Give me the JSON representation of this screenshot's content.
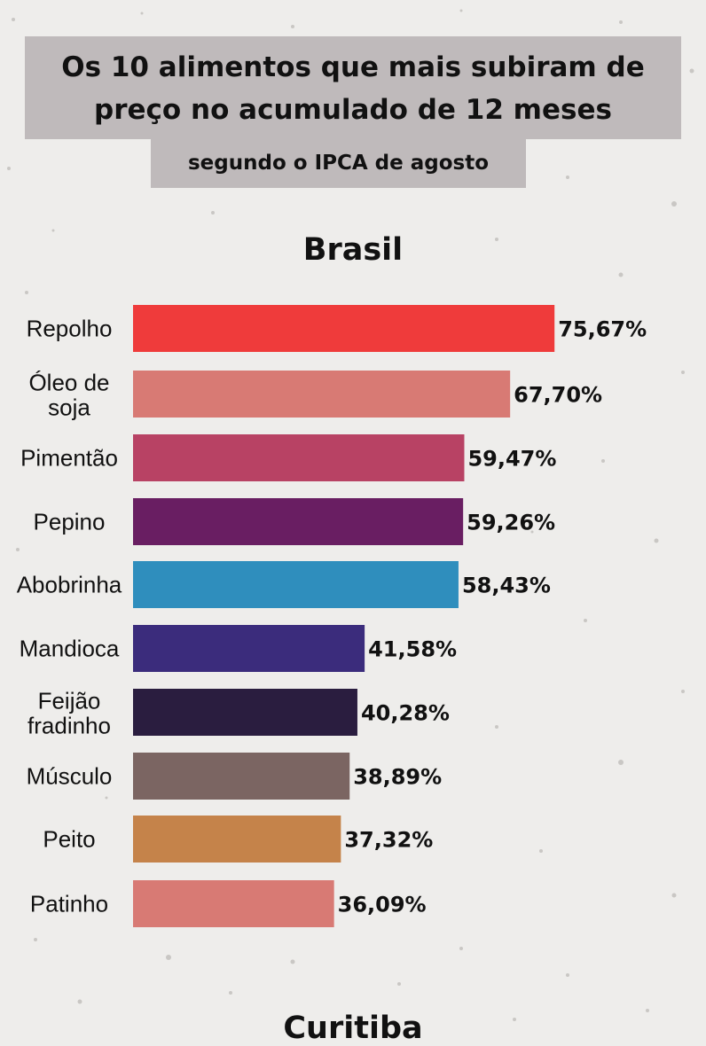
{
  "title": "Os 10 alimentos que mais subiram de preço no acumulado de 12 meses",
  "subtitle": "segundo o IPCA de agosto",
  "sections": [
    "Brasil",
    "Curitiba"
  ],
  "chart_data": {
    "type": "bar",
    "orientation": "horizontal",
    "title": "Brasil",
    "categories": [
      "Repolho",
      "Óleo de soja",
      "Pimentão",
      "Pepino",
      "Abobrinha",
      "Mandioca",
      "Feijão fradinho",
      "Músculo",
      "Peito",
      "Patinho"
    ],
    "values": [
      75.67,
      67.7,
      59.47,
      59.26,
      58.43,
      41.58,
      40.28,
      38.89,
      37.32,
      36.09
    ],
    "value_labels": [
      "75,67%",
      "67,70%",
      "59,47%",
      "59,26%",
      "58,43%",
      "41,58%",
      "40,28%",
      "38,89%",
      "37,32%",
      "36,09%"
    ],
    "colors": [
      "#ef3b3b",
      "#d87a74",
      "#b84264",
      "#691e62",
      "#2f8ebd",
      "#3b2c7c",
      "#2a1d3f",
      "#7b6562",
      "#c5834a",
      "#d87a74"
    ],
    "xlim": [
      0,
      100
    ],
    "grid": false,
    "legend": "none"
  }
}
